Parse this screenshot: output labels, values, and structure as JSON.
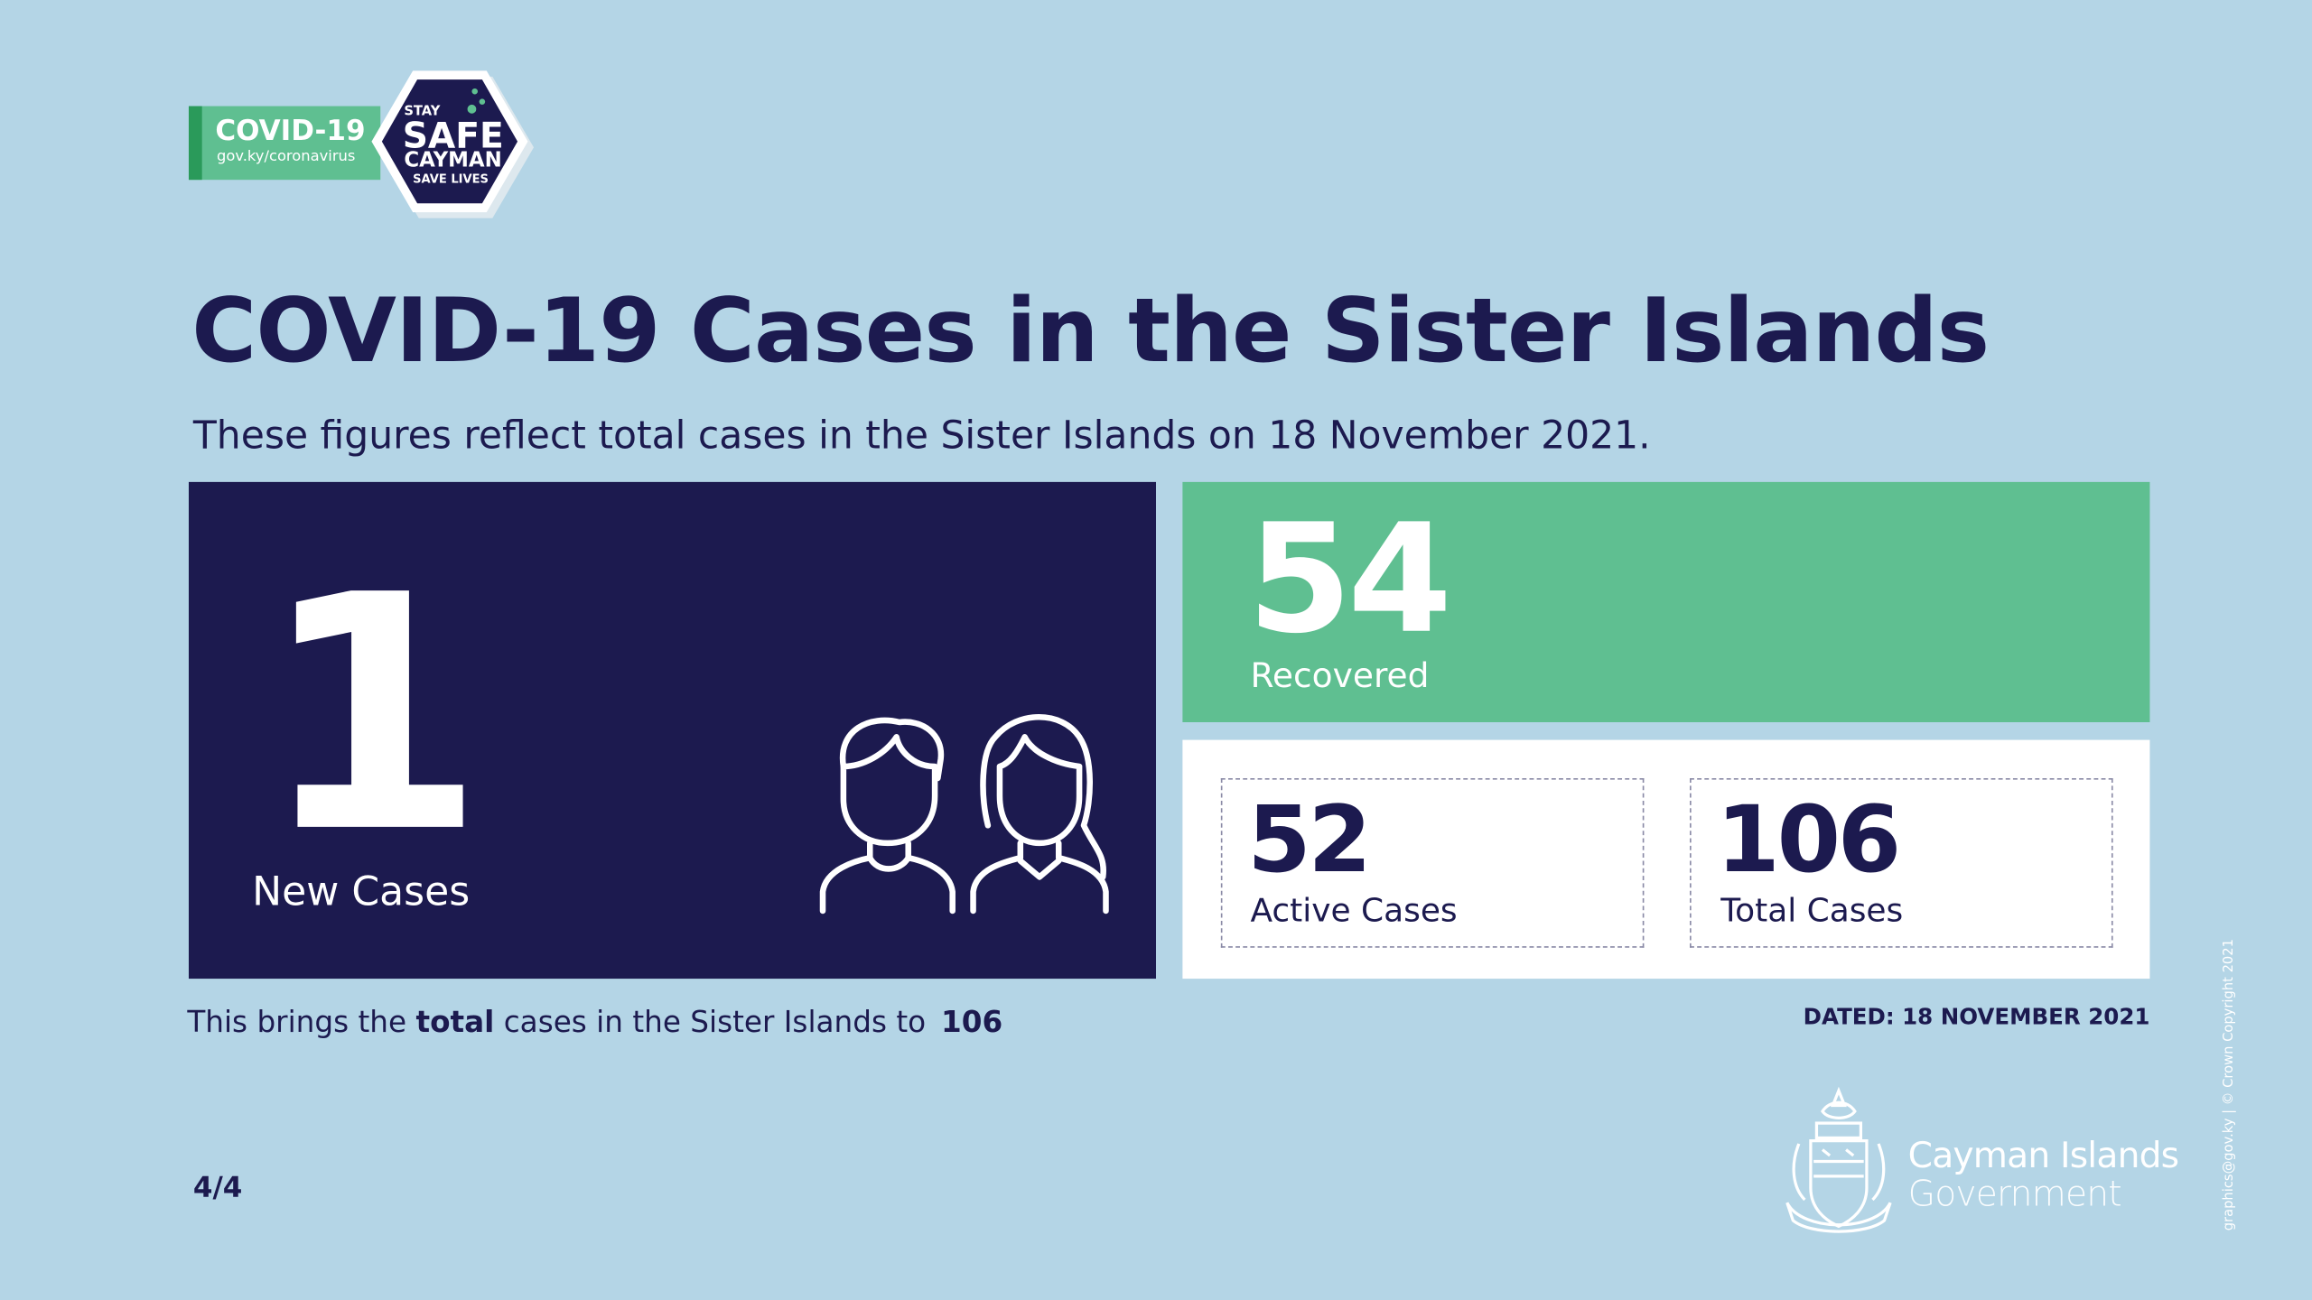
{
  "badge": {
    "title": "COVID-19",
    "url": "gov.ky/coronavirus",
    "stay": "STAY",
    "safe": "SAFE",
    "cayman": "CAYMAN",
    "save_lives": "SAVE LIVES"
  },
  "header": {
    "title": "COVID-19 Cases in the Sister Islands",
    "subtitle": "These figures reflect total cases in the Sister Islands on 18 November 2021."
  },
  "cards": {
    "new_cases": {
      "value": 1,
      "label": "New Cases"
    },
    "recovered": {
      "value": 54,
      "label": "Recovered"
    },
    "active": {
      "value": 52,
      "label": "Active Cases"
    },
    "total": {
      "value": 106,
      "label": "Total Cases"
    }
  },
  "footer": {
    "summary_before": "This brings the",
    "summary_bold": "total",
    "summary_after": "cases in the Sister Islands to",
    "summary_total": 106,
    "dated": "DATED: 18 NOVEMBER 2021",
    "page": "4/4",
    "org_line1": "Cayman Islands",
    "org_line2": "Government",
    "credit": "graphics@gov.ky | © Crown Copyright 2021"
  }
}
